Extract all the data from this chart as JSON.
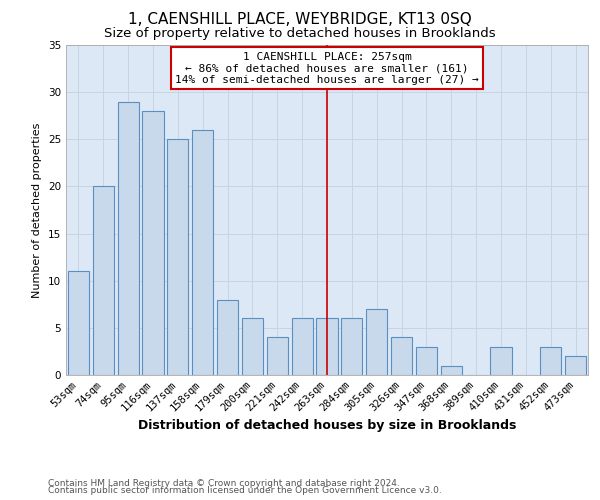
{
  "title": "1, CAENSHILL PLACE, WEYBRIDGE, KT13 0SQ",
  "subtitle": "Size of property relative to detached houses in Brooklands",
  "xlabel": "Distribution of detached houses by size in Brooklands",
  "ylabel": "Number of detached properties",
  "bar_labels": [
    "53sqm",
    "74sqm",
    "95sqm",
    "116sqm",
    "137sqm",
    "158sqm",
    "179sqm",
    "200sqm",
    "221sqm",
    "242sqm",
    "263sqm",
    "284sqm",
    "305sqm",
    "326sqm",
    "347sqm",
    "368sqm",
    "389sqm",
    "410sqm",
    "431sqm",
    "452sqm",
    "473sqm"
  ],
  "bar_values": [
    11,
    20,
    29,
    28,
    25,
    26,
    8,
    6,
    4,
    6,
    6,
    6,
    7,
    4,
    3,
    1,
    0,
    3,
    0,
    3,
    2
  ],
  "bar_color": "#c8d9ec",
  "bar_edge_color": "#5b8fc2",
  "bar_bg_color": "#dce8f5",
  "ylim": [
    0,
    35
  ],
  "yticks": [
    0,
    5,
    10,
    15,
    20,
    25,
    30,
    35
  ],
  "vline_x": 10,
  "vline_color": "#cc0000",
  "annotation_title": "1 CAENSHILL PLACE: 257sqm",
  "annotation_line1": "← 86% of detached houses are smaller (161)",
  "annotation_line2": "14% of semi-detached houses are larger (27) →",
  "annotation_box_color": "#cc0000",
  "footer1": "Contains HM Land Registry data © Crown copyright and database right 2024.",
  "footer2": "Contains public sector information licensed under the Open Government Licence v3.0.",
  "title_fontsize": 11,
  "subtitle_fontsize": 9.5,
  "xlabel_fontsize": 9,
  "ylabel_fontsize": 8,
  "tick_fontsize": 7.5,
  "annotation_fontsize": 8,
  "footer_fontsize": 6.5,
  "background_color": "#ffffff",
  "grid_color": "#c8d4e0",
  "axes_bg_color": "#dce8f5"
}
